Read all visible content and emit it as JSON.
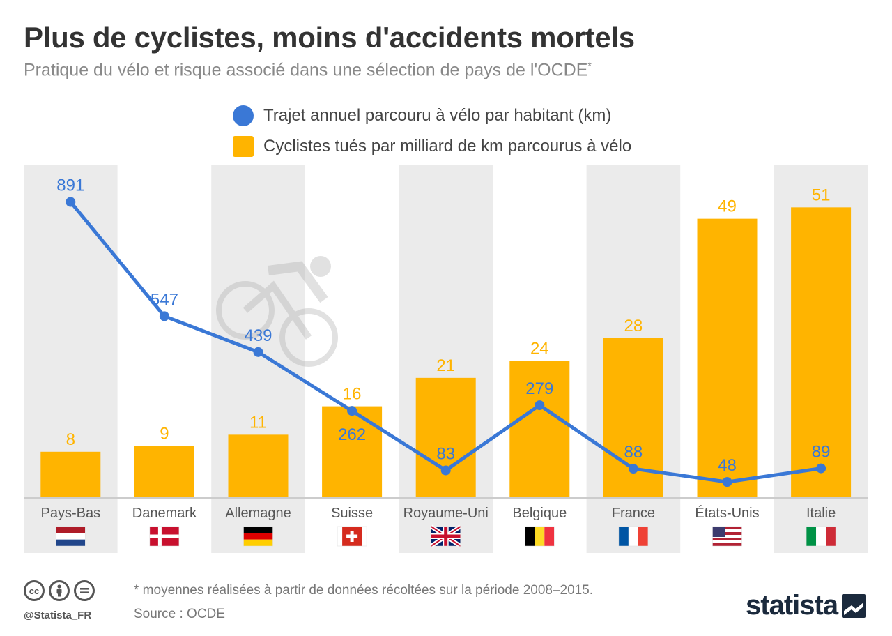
{
  "title": "Plus de cyclistes, moins d'accidents mortels",
  "subtitle": "Pratique du vélo et risque associé dans une sélection de pays de l'OCDE",
  "subtitle_mark": "*",
  "legend": {
    "line_label": "Trajet annuel parcouru à vélo par habitant (km)",
    "bar_label": "Cyclistes tués par milliard de km parcourus à vélo"
  },
  "colors": {
    "line": "#3a78d6",
    "bar": "#ffb400",
    "band": "#ebebeb",
    "axis_text": "#555555"
  },
  "chart_data": {
    "type": "bar",
    "categories": [
      "Pays-Bas",
      "Danemark",
      "Allemagne",
      "Suisse",
      "Royaume-Uni",
      "Belgique",
      "France",
      "États-Unis",
      "Italie"
    ],
    "series": [
      {
        "name": "Cyclistes tués par milliard de km parcourus à vélo",
        "type": "bar",
        "values": [
          8,
          9,
          11,
          16,
          21,
          24,
          28,
          49,
          51
        ]
      },
      {
        "name": "Trajet annuel parcouru à vélo par habitant (km)",
        "type": "line",
        "values": [
          891,
          547,
          439,
          262,
          83,
          279,
          88,
          48,
          89
        ]
      }
    ],
    "flags": [
      "nl",
      "dk",
      "de",
      "ch",
      "gb",
      "be",
      "fr",
      "us",
      "it"
    ],
    "grid": false
  },
  "footer": {
    "note": "* moyennes réalisées à partir de données récoltées sur la période 2008–2015.",
    "source": "Source : OCDE",
    "handle": "@Statista_FR",
    "brand": "statista",
    "cc_icons": [
      "cc-icon",
      "by-icon",
      "nd-icon"
    ]
  }
}
